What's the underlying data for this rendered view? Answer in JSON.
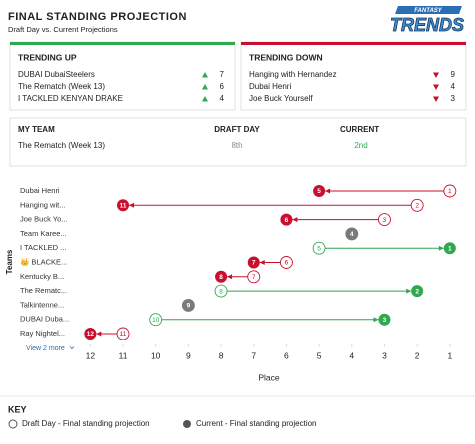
{
  "header": {
    "title": "FINAL STANDING PROJECTION",
    "subtitle": "Draft Day vs. Current Projections",
    "logo": {
      "top": "FANTASY",
      "main": "TRENDS"
    }
  },
  "trending_up": {
    "title": "TRENDING UP",
    "color": "#2fa84f",
    "rows": [
      {
        "team": "DUBAI DubaiSteelers",
        "change": 7
      },
      {
        "team": "The Rematch (Week 13)",
        "change": 6
      },
      {
        "team": "I TACKLED KENYAN DRAKE",
        "change": 4
      }
    ]
  },
  "trending_down": {
    "title": "TRENDING DOWN",
    "color": "#c8102e",
    "rows": [
      {
        "team": "Hanging with Hernandez",
        "change": 9
      },
      {
        "team": "Dubai Henri",
        "change": 4
      },
      {
        "team": "Joe Buck Yourself",
        "change": 3
      }
    ]
  },
  "my_team": {
    "headers": [
      "MY TEAM",
      "DRAFT DAY",
      "CURRENT"
    ],
    "team": "The Rematch (Week 13)",
    "draft_day": "8th",
    "current": "2nd"
  },
  "chart_data": {
    "type": "dumbbell",
    "y_label": "Teams",
    "x_label": "Place",
    "categories": [
      "Dubai Henri",
      "Hanging wit...",
      "Joe Buck Yo...",
      "Team Karee...",
      "I TACKLED ...",
      "👑 BLACKE...",
      "Kentucky B...",
      "The Rematc...",
      "Talkintenne...",
      "DUBAI Duba...",
      "Ray Nightel..."
    ],
    "series": [
      {
        "values": [
          1,
          2,
          3,
          4,
          5,
          6,
          7,
          8,
          9,
          10,
          11
        ]
      },
      {
        "values": [
          5,
          11,
          6,
          4,
          1,
          7,
          8,
          2,
          9,
          3,
          12
        ]
      }
    ],
    "xlim": [
      12.5,
      0.75
    ],
    "xticks": [
      12,
      11,
      10,
      9,
      8,
      7,
      6,
      5,
      4,
      3,
      2,
      1
    ],
    "colors": {
      "up": "#2fa84f",
      "down": "#c8102e",
      "same": "#7a7a7a"
    },
    "more_link": "View 2 more"
  },
  "key": {
    "title": "KEY",
    "items": [
      "Draft Day - Final standing projection",
      "Current - Final standing projection"
    ]
  }
}
